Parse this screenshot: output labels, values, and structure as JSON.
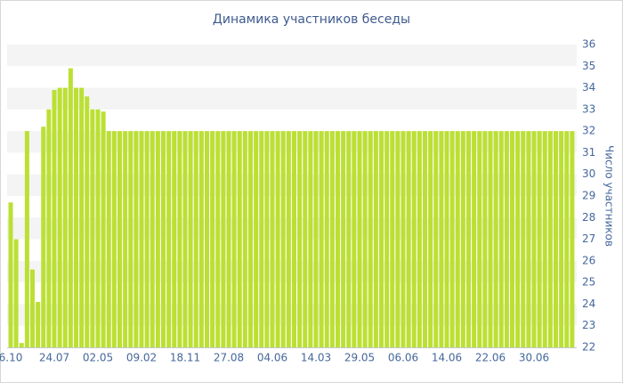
{
  "chart_data": {
    "type": "bar",
    "title": "Динамика участников беседы",
    "y_label": "Число участников",
    "categories": [
      "6.10",
      null,
      null,
      null,
      null,
      null,
      null,
      null,
      "24.07",
      null,
      null,
      null,
      null,
      null,
      null,
      null,
      "02.05",
      null,
      null,
      null,
      null,
      null,
      null,
      null,
      "09.02",
      null,
      null,
      null,
      null,
      null,
      null,
      null,
      "18.11",
      null,
      null,
      null,
      null,
      null,
      null,
      null,
      "27.08",
      null,
      null,
      null,
      null,
      null,
      null,
      null,
      "04.06",
      null,
      null,
      null,
      null,
      null,
      null,
      null,
      "14.03",
      null,
      null,
      null,
      null,
      null,
      null,
      null,
      "29.05",
      null,
      null,
      null,
      null,
      null,
      null,
      null,
      "06.06",
      null,
      null,
      null,
      null,
      null,
      null,
      null,
      "14.06",
      null,
      null,
      null,
      null,
      null,
      null,
      null,
      "22.06",
      null,
      null,
      null,
      null,
      null,
      null,
      null,
      "30.06",
      null,
      null,
      null,
      null,
      null,
      null,
      null
    ],
    "values": [
      28.7,
      27.0,
      22.2,
      32.0,
      25.6,
      24.1,
      32.2,
      33.0,
      33.9,
      34.0,
      34.0,
      34.9,
      34.0,
      34.0,
      33.6,
      33.0,
      33.0,
      32.9,
      32,
      32,
      32,
      32,
      32,
      32,
      32,
      32,
      32,
      32,
      32,
      32,
      32,
      32,
      32,
      32,
      32,
      32,
      32,
      32,
      32,
      32,
      32,
      32,
      32,
      32,
      32,
      32,
      32,
      32,
      32,
      32,
      32,
      32,
      32,
      32,
      32,
      32,
      32,
      32,
      32,
      32,
      32,
      32,
      32,
      32,
      32,
      32,
      32,
      32,
      32,
      32,
      32,
      32,
      32,
      32,
      32,
      32,
      32,
      32,
      32,
      32,
      32,
      32,
      32,
      32,
      32,
      32,
      32,
      32,
      32,
      32,
      32,
      32,
      32,
      32,
      32,
      32,
      32,
      32,
      32,
      32,
      32,
      32,
      32,
      32
    ],
    "color": "#bbe033",
    "ylim": [
      22,
      36
    ],
    "yticks": [
      22,
      23,
      24,
      25,
      26,
      27,
      28,
      29,
      30,
      31,
      32,
      33,
      34,
      35,
      36
    ],
    "grid": "bands",
    "y_axis_side": "right"
  }
}
